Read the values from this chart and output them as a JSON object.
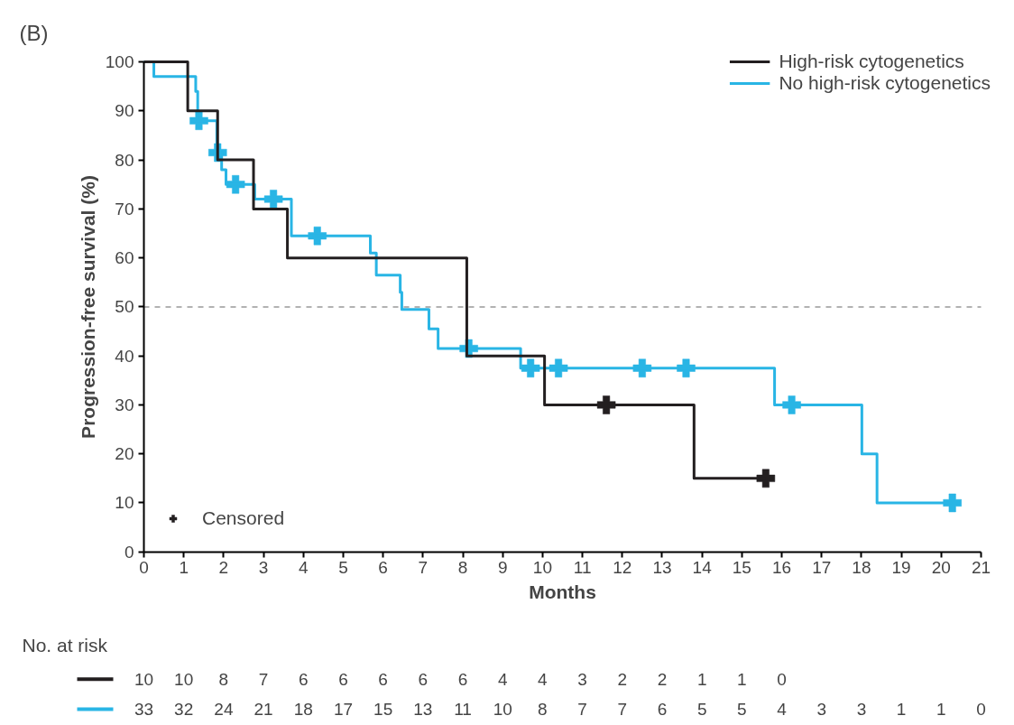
{
  "chart_data": {
    "type": "step",
    "title": "(B)",
    "xlabel": "Months",
    "ylabel": "Progression-free survival (%)",
    "xlim": [
      0,
      21
    ],
    "xticks": [
      0,
      1,
      2,
      3,
      4,
      5,
      6,
      7,
      8,
      9,
      10,
      11,
      12,
      13,
      14,
      15,
      16,
      17,
      18,
      19,
      20,
      21
    ],
    "ylim": [
      0,
      100
    ],
    "yticks": [
      0,
      10,
      20,
      30,
      40,
      50,
      60,
      70,
      80,
      90,
      100
    ],
    "grid": false,
    "legend": "top right",
    "line_style": "solid",
    "series": [
      {
        "name": "High-risk cytogenetics",
        "color": "#231f20",
        "x": [
          0,
          1.1,
          1.85,
          2.75,
          3.6,
          8.1,
          10.05,
          13.8,
          15.6
        ],
        "values": [
          100,
          90,
          80,
          70,
          60,
          40,
          30,
          15,
          15
        ]
      },
      {
        "name": "No high-risk cytogenetics",
        "color": "#29b5e5",
        "x": [
          0,
          0.25,
          1.3,
          1.35,
          1.83,
          1.95,
          2.06,
          2.78,
          3.7,
          5.68,
          5.83,
          6.43,
          6.47,
          7.15,
          7.38,
          9.45,
          15.82,
          18.01,
          18.39,
          20.28
        ],
        "values": [
          100,
          97,
          94,
          88,
          81.5,
          78,
          75,
          72,
          64.5,
          61,
          56.5,
          53,
          49.5,
          45.5,
          41.5,
          37.5,
          30,
          20,
          10,
          10
        ]
      },
      {
        "name": "Censored",
        "type": "scatter",
        "marker": "cross",
        "color": "#231f20",
        "x": [
          11.6,
          15.6
        ],
        "values": [
          30,
          15
        ]
      },
      {
        "type": "scatter",
        "marker": "cross",
        "color": "#29b5e5",
        "x": [
          1.38,
          1.85,
          2.3,
          3.25,
          4.35,
          8.15,
          9.7,
          10.4,
          12.5,
          13.6,
          16.25,
          20.28
        ],
        "values": [
          88,
          81.5,
          75,
          72,
          64.5,
          41.5,
          37.5,
          37.5,
          37.5,
          37.5,
          30,
          10
        ]
      }
    ],
    "ref_lines": [
      {
        "axis": "y",
        "value": 50,
        "color": "#999999",
        "line_style": "dashed"
      }
    ],
    "annotations": [
      "No. at risk",
      "10 10 8 7 6 6 6 6 6 4 4 3 2 2 1 1 0",
      "33 32 24 21 18 17 15 13 11 10 8 7 7 6 5 5 4 3 3 1 1 0"
    ]
  }
}
